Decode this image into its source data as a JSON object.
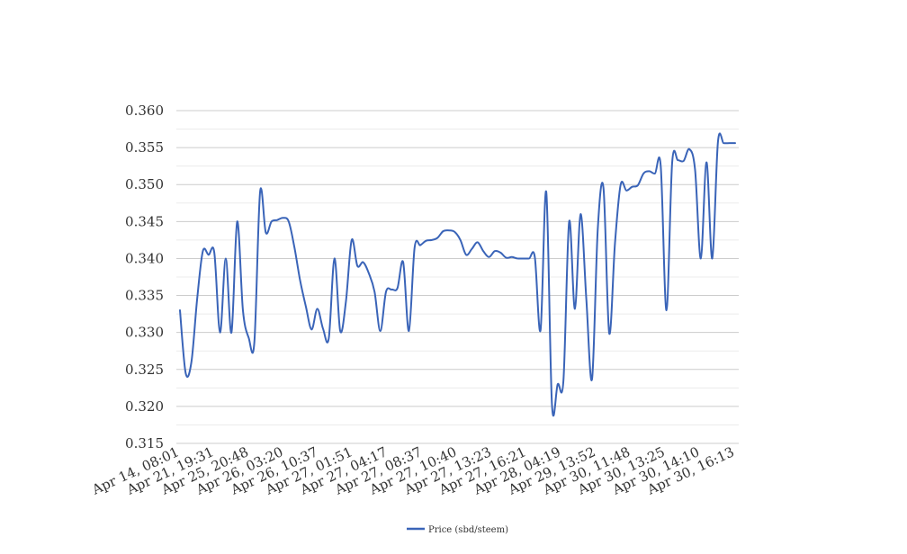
{
  "chart_data": {
    "type": "line",
    "title": "",
    "xlabel": "",
    "ylabel": "",
    "ylim": [
      0.315,
      0.36
    ],
    "y_ticks": [
      "0.360",
      "0.355",
      "0.350",
      "0.345",
      "0.340",
      "0.335",
      "0.330",
      "0.325",
      "0.320",
      "0.315"
    ],
    "x_tick_labels": [
      "Apr 14, 08:01",
      "Apr 21, 19:31",
      "Apr 25, 20:48",
      "Apr 26, 03:20",
      "Apr 26, 10:37",
      "Apr 27, 01:51",
      "Apr 27, 04:17",
      "Apr 27, 08:37",
      "Apr 27, 10:40",
      "Apr 27, 13:23",
      "Apr 27, 16:21",
      "Apr 28, 04:19",
      "Apr 29, 13:52",
      "Apr 30, 11:48",
      "Apr 30, 13:25",
      "Apr 30, 14:10",
      "Apr 30, 16:13"
    ],
    "grid": true,
    "legend_position": "bottom",
    "series_color": "#3a64b8",
    "series": [
      {
        "name": "Price (sbd/steem)",
        "values": [
          0.333,
          0.3245,
          0.326,
          0.3345,
          0.341,
          0.3405,
          0.3408,
          0.33,
          0.34,
          0.33,
          0.345,
          0.333,
          0.3293,
          0.3287,
          0.349,
          0.3435,
          0.345,
          0.3452,
          0.3455,
          0.345,
          0.3415,
          0.337,
          0.3335,
          0.3304,
          0.3332,
          0.3305,
          0.3292,
          0.34,
          0.3302,
          0.3342,
          0.3425,
          0.339,
          0.3395,
          0.338,
          0.3355,
          0.3302,
          0.3355,
          0.3358,
          0.336,
          0.3395,
          0.3302,
          0.3415,
          0.3418,
          0.3424,
          0.3425,
          0.3428,
          0.3437,
          0.3438,
          0.3436,
          0.3425,
          0.3405,
          0.3413,
          0.3422,
          0.341,
          0.3402,
          0.341,
          0.3408,
          0.3401,
          0.3402,
          0.34,
          0.34,
          0.34,
          0.3402,
          0.3303,
          0.349,
          0.3202,
          0.323,
          0.3235,
          0.345,
          0.3332,
          0.346,
          0.3345,
          0.3237,
          0.344,
          0.3495,
          0.3299,
          0.342,
          0.35,
          0.3492,
          0.3497,
          0.3499,
          0.3515,
          0.3518,
          0.3515,
          0.3525,
          0.333,
          0.353,
          0.3533,
          0.3532,
          0.3548,
          0.352,
          0.34,
          0.353,
          0.34,
          0.3558,
          0.3556,
          0.3556,
          0.3556
        ]
      }
    ]
  }
}
